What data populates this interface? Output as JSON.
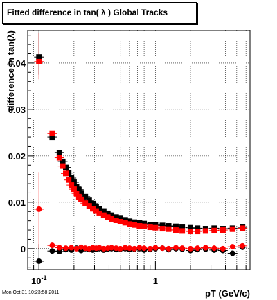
{
  "chart_data": {
    "type": "scatter",
    "title": "Fitted difference in tan( λ )  Global Tracks",
    "xlabel": "pT (GeV/c)",
    "ylabel": "difference in tan(λ)",
    "x_scale": "log",
    "xlim": [
      0.08,
      6.5
    ],
    "ylim": [
      -0.0045,
      0.047
    ],
    "x_tick_labels": [
      "10^-1",
      "1"
    ],
    "y_ticks": [
      0,
      0.01,
      0.02,
      0.03,
      0.04
    ],
    "y_tick_labels": [
      "0",
      "0.01",
      "0.02",
      "0.03",
      "0.04"
    ],
    "grid": true,
    "colors": {
      "black_series": "#000000",
      "red_series": "#ff0000"
    },
    "series": [
      {
        "marker": "square",
        "color": "#000000",
        "x": [
          0.1,
          0.13,
          0.15,
          0.16,
          0.17,
          0.18,
          0.19,
          0.2,
          0.21,
          0.22,
          0.23,
          0.25,
          0.27,
          0.29,
          0.31,
          0.33,
          0.36,
          0.39,
          0.42,
          0.46,
          0.5,
          0.55,
          0.6,
          0.66,
          0.73,
          0.8,
          0.9,
          1.0,
          1.15,
          1.3,
          1.5,
          1.7,
          2.0,
          2.3,
          2.7,
          3.2,
          3.8,
          4.6,
          5.6
        ],
        "values": [
          0.0413,
          0.024,
          0.0207,
          0.0188,
          0.0175,
          0.0163,
          0.0152,
          0.0143,
          0.0134,
          0.0127,
          0.012,
          0.0112,
          0.0104,
          0.0097,
          0.0091,
          0.0086,
          0.0081,
          0.0076,
          0.0072,
          0.0068,
          0.0065,
          0.0062,
          0.0059,
          0.0057,
          0.0055,
          0.0054,
          0.0052,
          0.0051,
          0.005,
          0.0049,
          0.0048,
          0.0046,
          0.0045,
          0.0044,
          0.0043,
          0.0044,
          0.0043,
          0.0044,
          0.0046
        ]
      },
      {
        "marker": "square",
        "color": "#ff0000",
        "x": [
          0.1,
          0.13,
          0.15,
          0.16,
          0.17,
          0.18,
          0.19,
          0.2,
          0.21,
          0.22,
          0.23,
          0.25,
          0.27,
          0.29,
          0.31,
          0.33,
          0.36,
          0.39,
          0.42,
          0.46,
          0.5,
          0.55,
          0.6,
          0.66,
          0.73,
          0.8,
          0.9,
          1.0,
          1.15,
          1.3,
          1.5,
          1.7,
          2.0,
          2.3,
          2.7,
          3.2,
          3.8,
          4.6,
          5.6
        ],
        "values": [
          0.0403,
          0.0248,
          0.0196,
          0.0178,
          0.0162,
          0.0148,
          0.0137,
          0.0128,
          0.0119,
          0.0112,
          0.0106,
          0.0098,
          0.0092,
          0.0086,
          0.0081,
          0.0076,
          0.0072,
          0.0068,
          0.0064,
          0.0061,
          0.0058,
          0.0056,
          0.0053,
          0.0051,
          0.0049,
          0.0048,
          0.0046,
          0.0045,
          0.0043,
          0.0042,
          0.004,
          0.0038,
          0.0037,
          0.0037,
          0.0038,
          0.0039,
          0.004,
          0.0042,
          0.0044
        ]
      },
      {
        "marker": "circle",
        "color": "#000000",
        "x": [
          0.1,
          0.13,
          0.15,
          0.17,
          0.19,
          0.21,
          0.23,
          0.25,
          0.27,
          0.29,
          0.31,
          0.33,
          0.36,
          0.39,
          0.42,
          0.46,
          0.5,
          0.55,
          0.6,
          0.66,
          0.73,
          0.8,
          0.9,
          1.0,
          1.15,
          1.3,
          1.5,
          1.7,
          2.0,
          2.3,
          2.7,
          3.2,
          3.8,
          4.6,
          5.6
        ],
        "values": [
          -0.0027,
          -0.0005,
          -0.0006,
          -0.0002,
          -0.0003,
          0.0001,
          -0.0004,
          0.0,
          -0.0002,
          -0.0003,
          -0.0001,
          0.0,
          -0.0003,
          -0.0001,
          0.0,
          -0.0002,
          -0.0001,
          0.0,
          -0.0002,
          -0.0001,
          0.0,
          -0.0003,
          -0.0002,
          0.0,
          0.0001,
          -0.0002,
          0.0,
          -0.0001,
          -0.0004,
          -0.0002,
          -0.0001,
          -0.0003,
          -0.0004,
          -0.001,
          0.0003
        ]
      },
      {
        "marker": "circle",
        "color": "#ff0000",
        "x": [
          0.1,
          0.13,
          0.15,
          0.17,
          0.19,
          0.21,
          0.23,
          0.25,
          0.27,
          0.29,
          0.31,
          0.33,
          0.36,
          0.39,
          0.42,
          0.46,
          0.5,
          0.55,
          0.6,
          0.66,
          0.73,
          0.8,
          0.9,
          1.0,
          1.15,
          1.3,
          1.5,
          1.7,
          2.0,
          2.3,
          2.7,
          3.2,
          3.8,
          4.6,
          5.6
        ],
        "values": [
          0.0085,
          0.0007,
          0.0002,
          0.0001,
          0.0002,
          0.0,
          0.0003,
          0.0001,
          0.0,
          0.0002,
          0.0001,
          0.0002,
          0.0,
          0.0001,
          0.0002,
          0.0001,
          0.0,
          0.0002,
          0.0001,
          0.0,
          0.0002,
          0.0001,
          0.0,
          0.0002,
          0.0001,
          0.0,
          0.0002,
          0.0001,
          0.0,
          0.0001,
          0.0002,
          0.0001,
          0.0,
          0.0004,
          0.0006
        ]
      }
    ],
    "error_bars": {
      "x_indices": [
        0,
        0,
        0,
        0
      ],
      "low": [
        0.0375,
        0.0365,
        -0.0045,
        0.0
      ],
      "high": [
        0.047,
        0.0465,
        0.001,
        0.0165
      ]
    }
  },
  "footer": {
    "timestamp": "Mon Oct 31 10:23:58 2011"
  }
}
